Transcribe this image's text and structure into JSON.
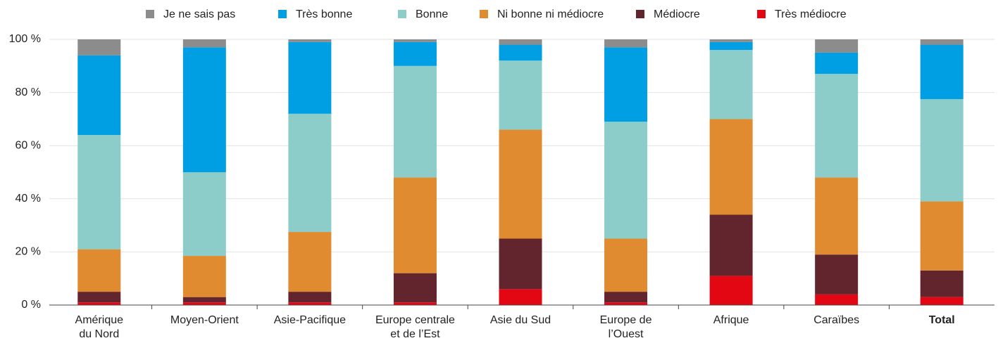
{
  "chart_data": {
    "type": "stacked_bar",
    "categories": [
      "Amérique\ndu Nord",
      "Moyen-Orient",
      "Asie-Pacifique",
      "Europe centrale\net de l’Est",
      "Asie du Sud",
      "Europe de\nl’Ouest",
      "Afrique",
      "Caraïbes",
      "Total"
    ],
    "series": [
      {
        "name": "Je ne sais pas",
        "color": "#8c8c8c",
        "values": [
          6,
          3,
          1,
          1,
          2,
          3,
          1,
          5,
          2
        ]
      },
      {
        "name": "Très bonne",
        "color": "#009fe3",
        "values": [
          30,
          47,
          27,
          9,
          6,
          28,
          3,
          8,
          20.5
        ]
      },
      {
        "name": "Bonne",
        "color": "#8ccdc9",
        "values": [
          43,
          31.5,
          44.5,
          42,
          26,
          44,
          26,
          39,
          38.5
        ]
      },
      {
        "name": "Ni bonne ni médiocre",
        "color": "#e18b31",
        "values": [
          16,
          15.5,
          22.5,
          36,
          41,
          20,
          36,
          29,
          26
        ]
      },
      {
        "name": "Médiocre",
        "color": "#62242d",
        "values": [
          4,
          2,
          4,
          11,
          19,
          4,
          23,
          15,
          10
        ]
      },
      {
        "name": "Très médiocre",
        "color": "#e30613",
        "values": [
          1,
          1,
          1,
          1,
          6,
          1,
          11,
          4,
          3
        ]
      }
    ],
    "ylim": [
      0,
      100
    ],
    "yticks": [
      {
        "value": 0,
        "label": "0 %"
      },
      {
        "value": 20,
        "label": "20 %"
      },
      {
        "value": 40,
        "label": "40 %"
      },
      {
        "value": 60,
        "label": "60 %"
      },
      {
        "value": 80,
        "label": "80 %"
      },
      {
        "value": 100,
        "label": "100 %"
      }
    ],
    "grid": true,
    "legend": "top"
  }
}
